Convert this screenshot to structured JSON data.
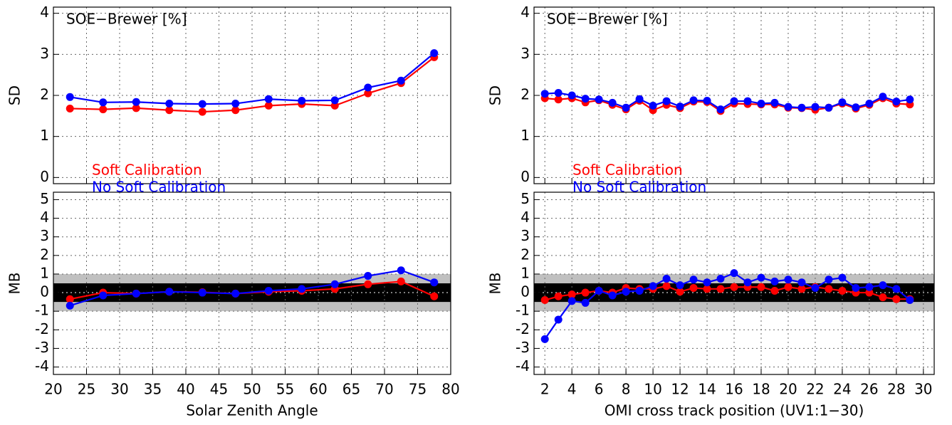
{
  "chart_data": [
    {
      "type": "line",
      "title": "SOE−Brewer [%]",
      "ylabel": "SD",
      "x": [
        22.5,
        27.5,
        32.5,
        37.5,
        42.5,
        47.5,
        52.5,
        57.5,
        62.5,
        67.5,
        72.5,
        77.5
      ],
      "xlim": [
        20,
        80
      ],
      "xticks": [
        20,
        25,
        30,
        35,
        40,
        45,
        50,
        55,
        60,
        65,
        70,
        75,
        80
      ],
      "ylim": [
        -0.15,
        4.15
      ],
      "yticks": [
        0,
        1,
        2,
        3,
        4
      ],
      "grid": true,
      "series": [
        {
          "name": "Soft Calibration",
          "color": "#ff0000",
          "values": [
            1.68,
            1.66,
            1.69,
            1.64,
            1.6,
            1.64,
            1.75,
            1.79,
            1.75,
            2.05,
            2.3,
            2.93
          ]
        },
        {
          "name": "No Soft Calibration",
          "color": "#0000ff",
          "values": [
            1.96,
            1.83,
            1.84,
            1.8,
            1.79,
            1.8,
            1.91,
            1.87,
            1.88,
            2.19,
            2.36,
            3.03
          ]
        }
      ]
    },
    {
      "type": "line",
      "ylabel": "MB",
      "xlabel": "Solar Zenith Angle",
      "x": [
        22.5,
        27.5,
        32.5,
        37.5,
        42.5,
        47.5,
        52.5,
        57.5,
        62.5,
        67.5,
        72.5,
        77.5
      ],
      "xlim": [
        20,
        80
      ],
      "xticks": [
        20,
        25,
        30,
        35,
        40,
        45,
        50,
        55,
        60,
        65,
        70,
        75,
        80
      ],
      "ylim": [
        -4.4,
        5.4
      ],
      "yticks": [
        -4,
        -3,
        -2,
        -1,
        0,
        1,
        2,
        3,
        4,
        5
      ],
      "grid": true,
      "bands": [
        {
          "range": [
            -1,
            1
          ],
          "color": "#c0c0c0"
        },
        {
          "range": [
            -0.5,
            0.5
          ],
          "color": "#000000"
        }
      ],
      "series": [
        {
          "color": "#ff0000",
          "values": [
            -0.35,
            0.0,
            -0.05,
            0.05,
            0.02,
            -0.05,
            0.05,
            0.1,
            0.2,
            0.45,
            0.6,
            -0.2
          ]
        },
        {
          "color": "#0000ff",
          "values": [
            -0.7,
            -0.15,
            -0.05,
            0.05,
            0.0,
            -0.05,
            0.1,
            0.2,
            0.45,
            0.9,
            1.2,
            0.55
          ]
        }
      ]
    },
    {
      "type": "line",
      "title": "SOE−Brewer [%]",
      "ylabel": "SD",
      "x": [
        2,
        3,
        4,
        5,
        6,
        7,
        8,
        9,
        10,
        11,
        12,
        13,
        14,
        15,
        16,
        17,
        18,
        19,
        20,
        21,
        22,
        23,
        24,
        25,
        26,
        27,
        28,
        29
      ],
      "xlim": [
        1.2,
        30.8
      ],
      "xticks": [
        2,
        4,
        6,
        8,
        10,
        12,
        14,
        16,
        18,
        20,
        22,
        24,
        26,
        28,
        30
      ],
      "ylim": [
        -0.15,
        4.15
      ],
      "yticks": [
        0,
        1,
        2,
        3,
        4
      ],
      "grid": true,
      "series": [
        {
          "name": "Soft Calibration",
          "color": "#ff0000",
          "values": [
            1.93,
            1.9,
            1.93,
            1.83,
            1.88,
            1.77,
            1.66,
            1.87,
            1.64,
            1.77,
            1.69,
            1.85,
            1.84,
            1.62,
            1.8,
            1.79,
            1.78,
            1.78,
            1.7,
            1.69,
            1.65,
            1.7,
            1.8,
            1.68,
            1.77,
            1.93,
            1.8,
            1.78
          ]
        },
        {
          "name": "No Soft Calibration",
          "color": "#0000ff",
          "values": [
            2.04,
            2.06,
            2.0,
            1.92,
            1.9,
            1.82,
            1.7,
            1.91,
            1.75,
            1.86,
            1.73,
            1.88,
            1.87,
            1.66,
            1.86,
            1.86,
            1.8,
            1.82,
            1.72,
            1.7,
            1.72,
            1.7,
            1.83,
            1.71,
            1.8,
            1.97,
            1.85,
            1.9
          ]
        }
      ]
    },
    {
      "type": "line",
      "ylabel": "MB",
      "xlabel": "OMI cross track position (UV1:1−30)",
      "x": [
        2,
        3,
        4,
        5,
        6,
        7,
        8,
        9,
        10,
        11,
        12,
        13,
        14,
        15,
        16,
        17,
        18,
        19,
        20,
        21,
        22,
        23,
        24,
        25,
        26,
        27,
        28,
        29
      ],
      "xlim": [
        1.2,
        30.8
      ],
      "xticks": [
        2,
        4,
        6,
        8,
        10,
        12,
        14,
        16,
        18,
        20,
        22,
        24,
        26,
        28,
        30
      ],
      "ylim": [
        -4.4,
        5.4
      ],
      "yticks": [
        -4,
        -3,
        -2,
        -1,
        0,
        1,
        2,
        3,
        4,
        5
      ],
      "grid": true,
      "bands": [
        {
          "range": [
            -1,
            1
          ],
          "color": "#c0c0c0"
        },
        {
          "range": [
            -0.5,
            0.5
          ],
          "color": "#000000"
        }
      ],
      "series": [
        {
          "color": "#ff0000",
          "values": [
            -0.4,
            -0.2,
            -0.1,
            0.0,
            0.1,
            0.0,
            0.25,
            0.2,
            0.2,
            0.35,
            0.05,
            0.25,
            0.2,
            0.2,
            0.3,
            0.3,
            0.3,
            0.1,
            0.3,
            0.2,
            0.3,
            0.2,
            0.1,
            0.0,
            0.0,
            -0.25,
            -0.35,
            -0.35
          ]
        },
        {
          "color": "#0000ff",
          "values": [
            -2.5,
            -1.45,
            -0.45,
            -0.55,
            0.1,
            -0.15,
            0.05,
            0.1,
            0.35,
            0.75,
            0.4,
            0.7,
            0.55,
            0.75,
            1.05,
            0.55,
            0.8,
            0.6,
            0.7,
            0.55,
            0.25,
            0.7,
            0.8,
            0.25,
            0.3,
            0.4,
            0.2,
            -0.4
          ]
        }
      ]
    }
  ]
}
